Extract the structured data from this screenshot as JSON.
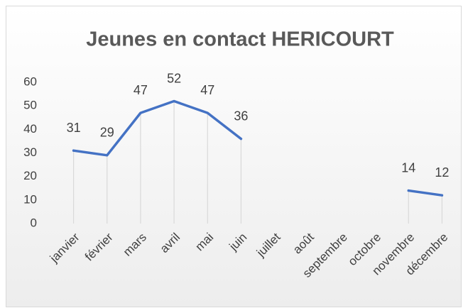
{
  "chart_data": {
    "type": "line",
    "title": "Jeunes en contact HERICOURT",
    "categories": [
      "janvier",
      "février",
      "mars",
      "avril",
      "mai",
      "juin",
      "juillet",
      "août",
      "septembre",
      "octobre",
      "novembre",
      "décembre"
    ],
    "values": [
      31,
      29,
      47,
      52,
      47,
      36,
      null,
      null,
      null,
      null,
      14,
      12
    ],
    "color": "#4472c4",
    "ylim": [
      0,
      60
    ],
    "yticks": [
      0,
      10,
      20,
      30,
      40,
      50,
      60
    ],
    "grid": false
  }
}
